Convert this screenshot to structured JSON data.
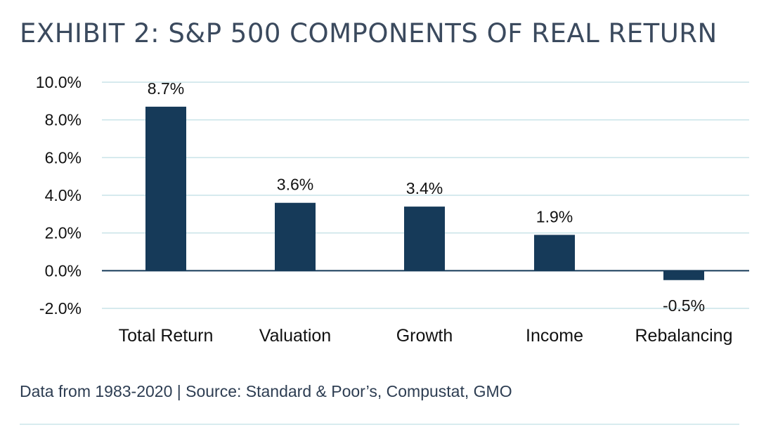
{
  "colors": {
    "bar": "#163a59",
    "grid": "#c9e3e8",
    "axis": "#163a59",
    "text": "#111111",
    "title": "#3b4a5e"
  },
  "chart_data": {
    "type": "bar",
    "title": "EXHIBIT 2: S&P 500 COMPONENTS OF REAL RETURN",
    "xlabel": "",
    "ylabel": "",
    "categories": [
      "Total Return",
      "Valuation",
      "Growth",
      "Income",
      "Rebalancing"
    ],
    "values": [
      8.7,
      3.6,
      3.4,
      1.9,
      -0.5
    ],
    "data_labels": [
      "8.7%",
      "3.6%",
      "3.4%",
      "1.9%",
      "-0.5%"
    ],
    "ylim": [
      -2,
      10
    ],
    "yticks": [
      10,
      8,
      6,
      4,
      2,
      0,
      -2
    ],
    "ytick_labels": [
      "10.0%",
      "8.0%",
      "6.0%",
      "4.0%",
      "2.0%",
      "0.0%",
      "-2.0%"
    ],
    "grid": true,
    "legend": "none"
  },
  "footer": {
    "source": "Data from 1983-2020 | Source: Standard & Poor’s, Compustat, GMO"
  }
}
